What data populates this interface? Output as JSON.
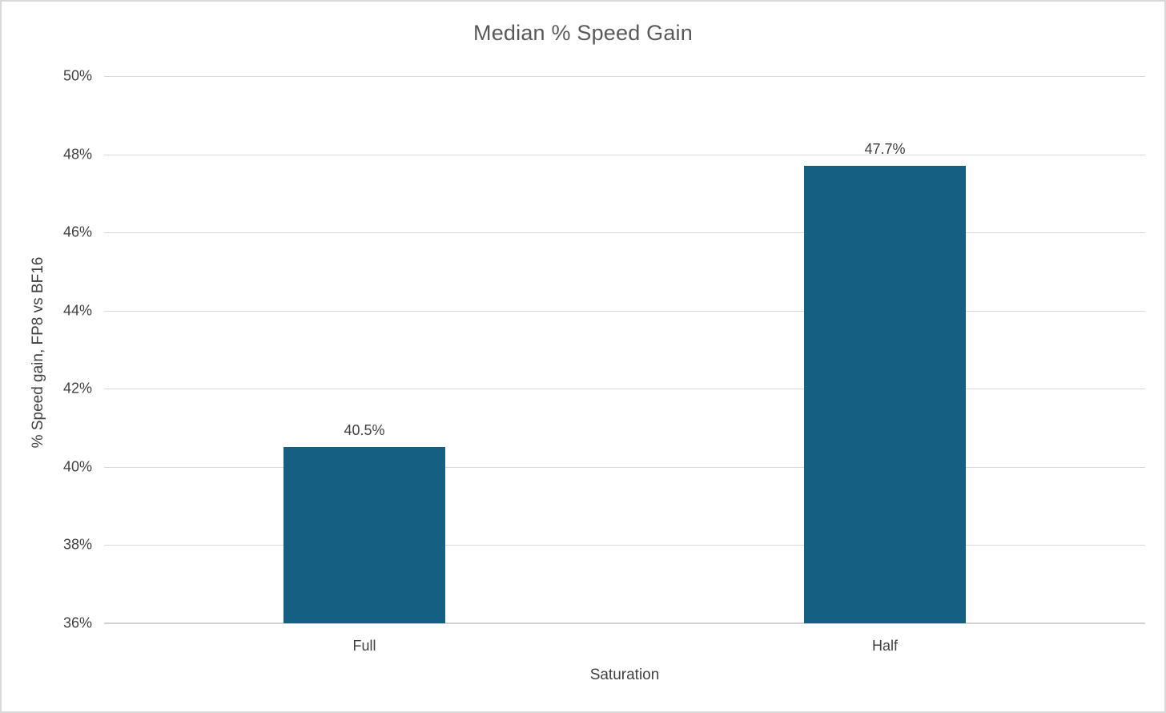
{
  "chart_data": {
    "type": "bar",
    "title": "Median % Speed Gain",
    "xlabel": "Saturation",
    "ylabel": "% Speed gain, FP8 vs BF16",
    "categories": [
      "Full",
      "Half"
    ],
    "series": [
      {
        "name": "Median % Speed Gain",
        "values": [
          40.5,
          47.7
        ]
      }
    ],
    "data_labels": [
      "40.5%",
      "47.7%"
    ],
    "ylim": [
      36,
      50
    ],
    "ytick_step": 2,
    "ytick_labels": [
      "36%",
      "38%",
      "40%",
      "42%",
      "44%",
      "46%",
      "48%",
      "50%"
    ],
    "grid": true,
    "legend_visible": false,
    "colors": {
      "bar": "#156082",
      "gridline": "#d9d9d9",
      "axis_line": "#d2d2d2",
      "title_text": "#595959",
      "label_text": "#404040",
      "background": "#ffffff",
      "figure_border": "#d9d9d9"
    }
  }
}
